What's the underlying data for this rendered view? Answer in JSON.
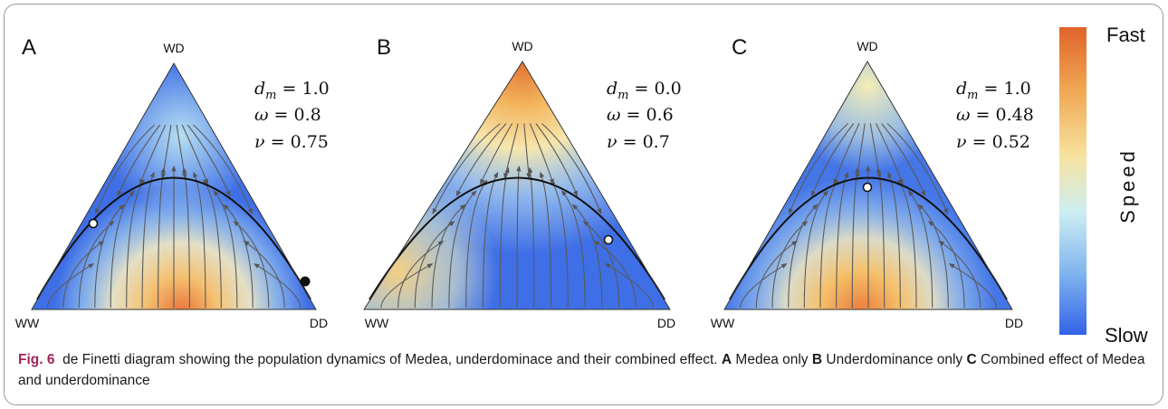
{
  "panels": [
    {
      "letter": "A",
      "vertex_top": "WD",
      "vertex_left": "WW",
      "vertex_right": "DD",
      "params": [
        {
          "var": "d",
          "sub": "m",
          "value": "1.0"
        },
        {
          "var": "ω",
          "sub": "",
          "value": "0.8"
        },
        {
          "var": "ν",
          "sub": "",
          "value": "0.75"
        }
      ]
    },
    {
      "letter": "B",
      "vertex_top": "WD",
      "vertex_left": "WW",
      "vertex_right": "DD",
      "params": [
        {
          "var": "d",
          "sub": "m",
          "value": "0.0"
        },
        {
          "var": "ω",
          "sub": "",
          "value": "0.6"
        },
        {
          "var": "ν",
          "sub": "",
          "value": "0.7"
        }
      ]
    },
    {
      "letter": "C",
      "vertex_top": "WD",
      "vertex_left": "WW",
      "vertex_right": "DD",
      "params": [
        {
          "var": "d",
          "sub": "m",
          "value": "1.0"
        },
        {
          "var": "ω",
          "sub": "",
          "value": "0.48"
        },
        {
          "var": "ν",
          "sub": "",
          "value": "0.52"
        }
      ]
    }
  ],
  "colorbar": {
    "top_label": "Fast",
    "bottom_label": "Slow",
    "title": "Speed",
    "colors": [
      "#e0642b",
      "#f0a552",
      "#f7e3a0",
      "#cdeef2",
      "#7fb5ee",
      "#3462e8"
    ]
  },
  "caption": {
    "fig_label": "Fig. 6",
    "text": "de Finetti diagram showing the population dynamics of Medea, underdominace and their combined effect.",
    "items": [
      {
        "letter": "A",
        "text": "Medea only"
      },
      {
        "letter": "B",
        "text": "Underdominance only"
      },
      {
        "letter": "C",
        "text": "Combined effect of Medea and underdominance"
      }
    ]
  }
}
